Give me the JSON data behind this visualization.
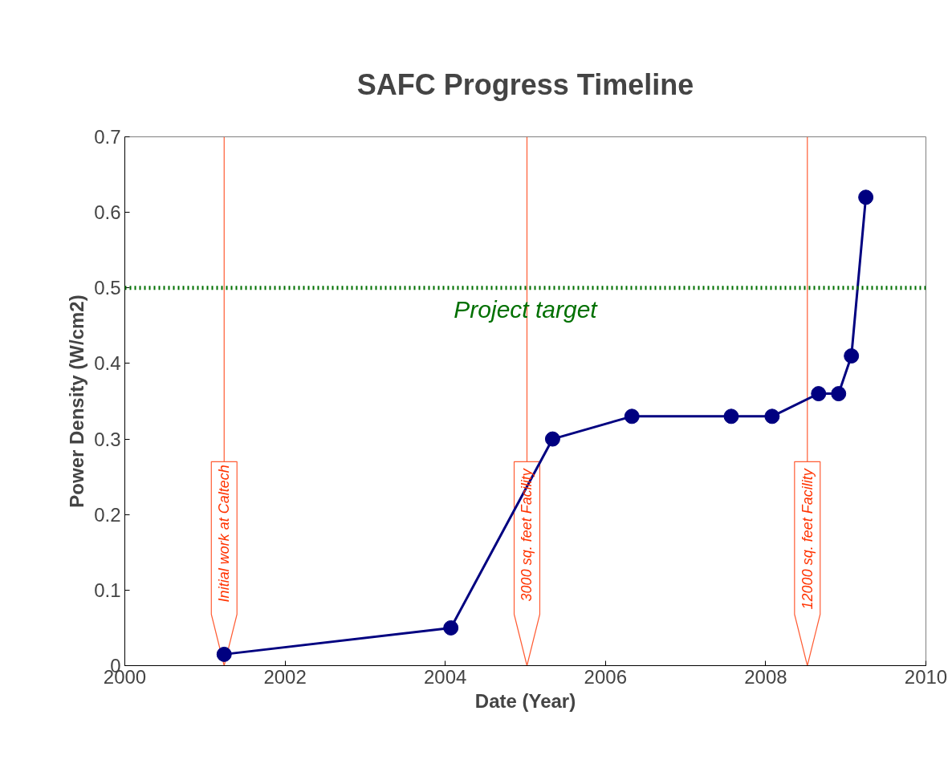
{
  "chart_data": {
    "type": "line",
    "title": "SAFC Progress Timeline",
    "xlabel": "Date (Year)",
    "ylabel": "Power Density (W/cm2)",
    "x": [
      2001.24,
      2004.07,
      2005.34,
      2006.33,
      2007.57,
      2008.08,
      2008.66,
      2008.91,
      2009.07,
      2009.25
    ],
    "series": [
      {
        "color": "#000080",
        "values": [
          0.015,
          0.05,
          0.3,
          0.33,
          0.33,
          0.33,
          0.36,
          0.36,
          0.41,
          0.62
        ]
      }
    ],
    "xlim": [
      2000,
      2010
    ],
    "xticks": [
      2000,
      2002,
      2004,
      2006,
      2008,
      2010
    ],
    "ylim": [
      0,
      0.7
    ],
    "yticks": [
      0,
      0.1,
      0.2,
      0.3,
      0.4,
      0.5,
      0.6,
      0.7
    ],
    "grid": false,
    "marker": "circle",
    "line_style": "solid",
    "ref_lines": [
      {
        "axis": "y",
        "value": 0.5,
        "label": "Project target",
        "color": "#007000",
        "line_style": "dotted"
      },
      {
        "axis": "x",
        "value": 2001.24,
        "label": "Initial work at Caltech",
        "color": "#ff3300"
      },
      {
        "axis": "x",
        "value": 2005.02,
        "label": "3000 sq. feet  Facility",
        "color": "#ff3300"
      },
      {
        "axis": "x",
        "value": 2008.52,
        "label": "12000 sq. feet  Facility",
        "color": "#ff3300"
      }
    ]
  }
}
